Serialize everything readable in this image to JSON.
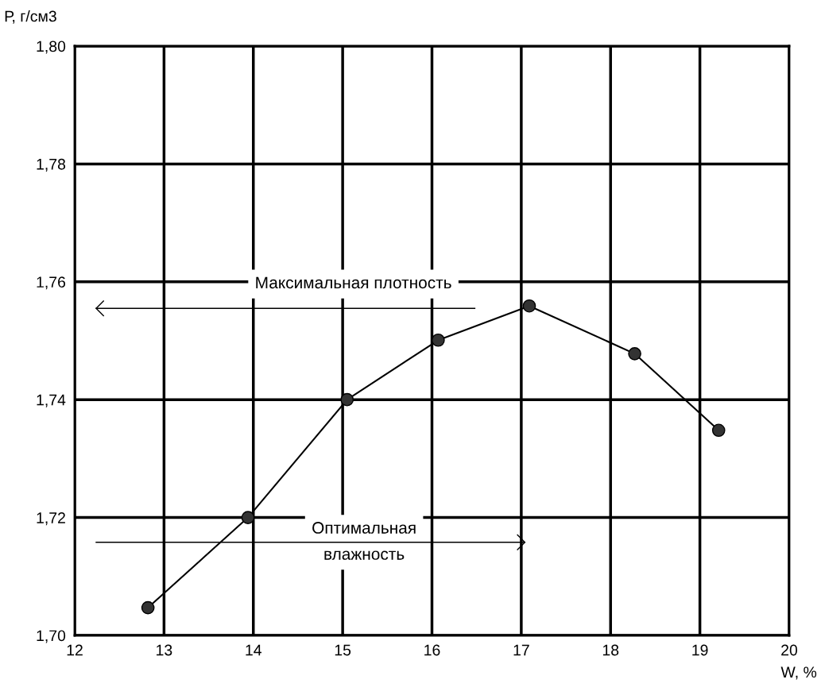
{
  "chart_data": {
    "type": "line",
    "xlabel": "W, %",
    "ylabel": "Р, г/см3",
    "x": [
      12.82,
      13.94,
      15.05,
      16.07,
      17.09,
      18.27,
      19.21
    ],
    "series": [
      {
        "color": "#000000",
        "values": [
          1.7047,
          1.72,
          1.74,
          1.7501,
          1.7559,
          1.7478,
          1.7348
        ]
      }
    ],
    "marker": "circle",
    "xlim": [
      12,
      20
    ],
    "xticks": [
      12,
      13,
      14,
      15,
      16,
      17,
      18,
      19,
      20
    ],
    "ylim": [
      1.7,
      1.8
    ],
    "yticks": [
      {
        "value": 1.7,
        "label": "1,70"
      },
      {
        "value": 1.72,
        "label": "1,72"
      },
      {
        "value": 1.74,
        "label": "1,74"
      },
      {
        "value": 1.76,
        "label": "1,76"
      },
      {
        "value": 1.78,
        "label": "1,78"
      },
      {
        "value": 1.8,
        "label": "1,80"
      }
    ],
    "grid": true,
    "ref_lines": [
      {
        "axis": "y",
        "value": 1.7555,
        "label": "Максимальная плотность",
        "color": "#000000"
      },
      {
        "axis": "y",
        "value": 1.7158,
        "label": "Оптимальная\nвлажность",
        "color": "#000000"
      }
    ]
  }
}
